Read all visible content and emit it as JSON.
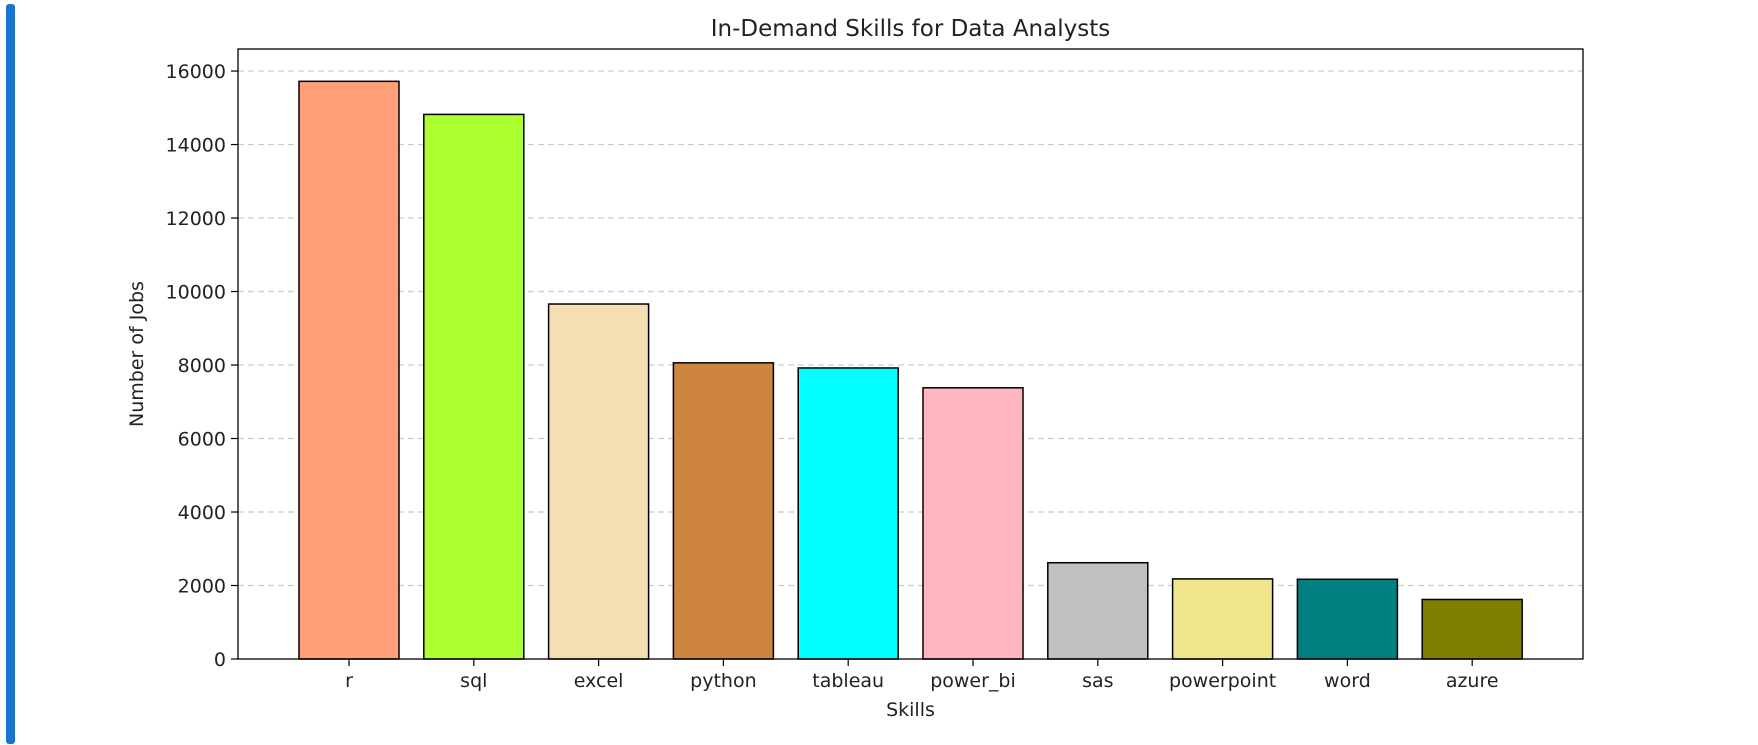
{
  "frame": {
    "accent_color": "#1a73d1"
  },
  "chart_data": {
    "type": "bar",
    "title": "In-Demand Skills for Data Analysts",
    "xlabel": "Skills",
    "ylabel": "Number of Jobs",
    "categories": [
      "r",
      "sql",
      "excel",
      "python",
      "tableau",
      "power_bi",
      "sas",
      "powerpoint",
      "word",
      "azure"
    ],
    "values": [
      15720,
      14820,
      9660,
      8060,
      7920,
      7380,
      2620,
      2180,
      2170,
      1620
    ],
    "colors": [
      "#ffa07a",
      "#adff2f",
      "#f5deb3",
      "#cd853f",
      "#00ffff",
      "#ffb6c1",
      "#c0c0c0",
      "#f0e68c",
      "#008080",
      "#808000"
    ],
    "bar_edge_color": "#000000",
    "ylim": [
      0,
      16600
    ],
    "yticks": [
      0,
      2000,
      4000,
      6000,
      8000,
      10000,
      12000,
      14000,
      16000
    ],
    "grid": {
      "axis": "y",
      "style": "dashed",
      "color": "#cccccc"
    }
  }
}
